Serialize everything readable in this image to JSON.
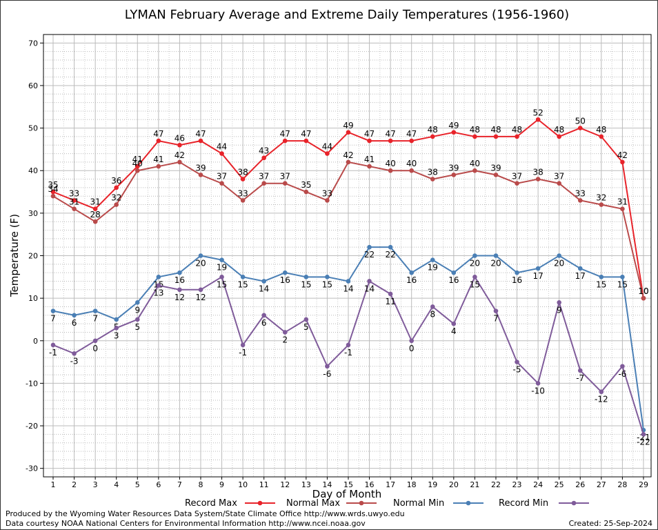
{
  "chart_data": {
    "type": "line",
    "title": "LYMAN February Average and Extreme Daily Temperatures (1956-1960)",
    "xlabel": "Day of Month",
    "ylabel": "Temperature (F)",
    "x": [
      1,
      2,
      3,
      4,
      5,
      6,
      7,
      8,
      9,
      10,
      11,
      12,
      13,
      14,
      15,
      16,
      17,
      18,
      19,
      20,
      21,
      22,
      23,
      24,
      25,
      26,
      27,
      28,
      29
    ],
    "ylim": [
      -32,
      72
    ],
    "yticks": [
      -30,
      -20,
      -10,
      0,
      10,
      20,
      30,
      40,
      50,
      60,
      70
    ],
    "grid": true,
    "legend_position": "bottom",
    "series": [
      {
        "name": "Record Max",
        "color": "#e8232a",
        "values": [
          35,
          33,
          31,
          36,
          41,
          47,
          46,
          47,
          44,
          38,
          43,
          47,
          47,
          44,
          49,
          47,
          47,
          47,
          48,
          49,
          48,
          48,
          48,
          52,
          48,
          50,
          48,
          42,
          10
        ]
      },
      {
        "name": "Normal Max",
        "color": "#b94a4a",
        "values": [
          34,
          31,
          28,
          32,
          40,
          41,
          42,
          39,
          37,
          33,
          37,
          37,
          35,
          33,
          42,
          41,
          40,
          40,
          38,
          39,
          40,
          39,
          37,
          38,
          37,
          33,
          32,
          31,
          10
        ]
      },
      {
        "name": "Normal Min",
        "color": "#4a7fb5",
        "values": [
          7,
          6,
          7,
          5,
          9,
          15,
          16,
          20,
          19,
          15,
          14,
          16,
          15,
          15,
          14,
          22,
          22,
          16,
          19,
          16,
          20,
          20,
          16,
          17,
          20,
          17,
          15,
          15,
          -21
        ]
      },
      {
        "name": "Record Min",
        "color": "#7f5b9a",
        "values": [
          -1,
          -3,
          0,
          3,
          5,
          13,
          12,
          12,
          15,
          -1,
          6,
          2,
          5,
          -6,
          -1,
          14,
          11,
          0,
          8,
          4,
          15,
          7,
          -5,
          -10,
          9,
          -7,
          -12,
          -6,
          -22
        ]
      }
    ]
  },
  "footer": {
    "produced_by": "Produced by the Wyoming Water Resources Data System/State Climate Office http://www.wrds.uwyo.edu",
    "courtesy": "Data courtesy NOAA National Centers for Environmental Information http://www.ncei.noaa.gov",
    "created": "Created: 25-Sep-2024"
  }
}
